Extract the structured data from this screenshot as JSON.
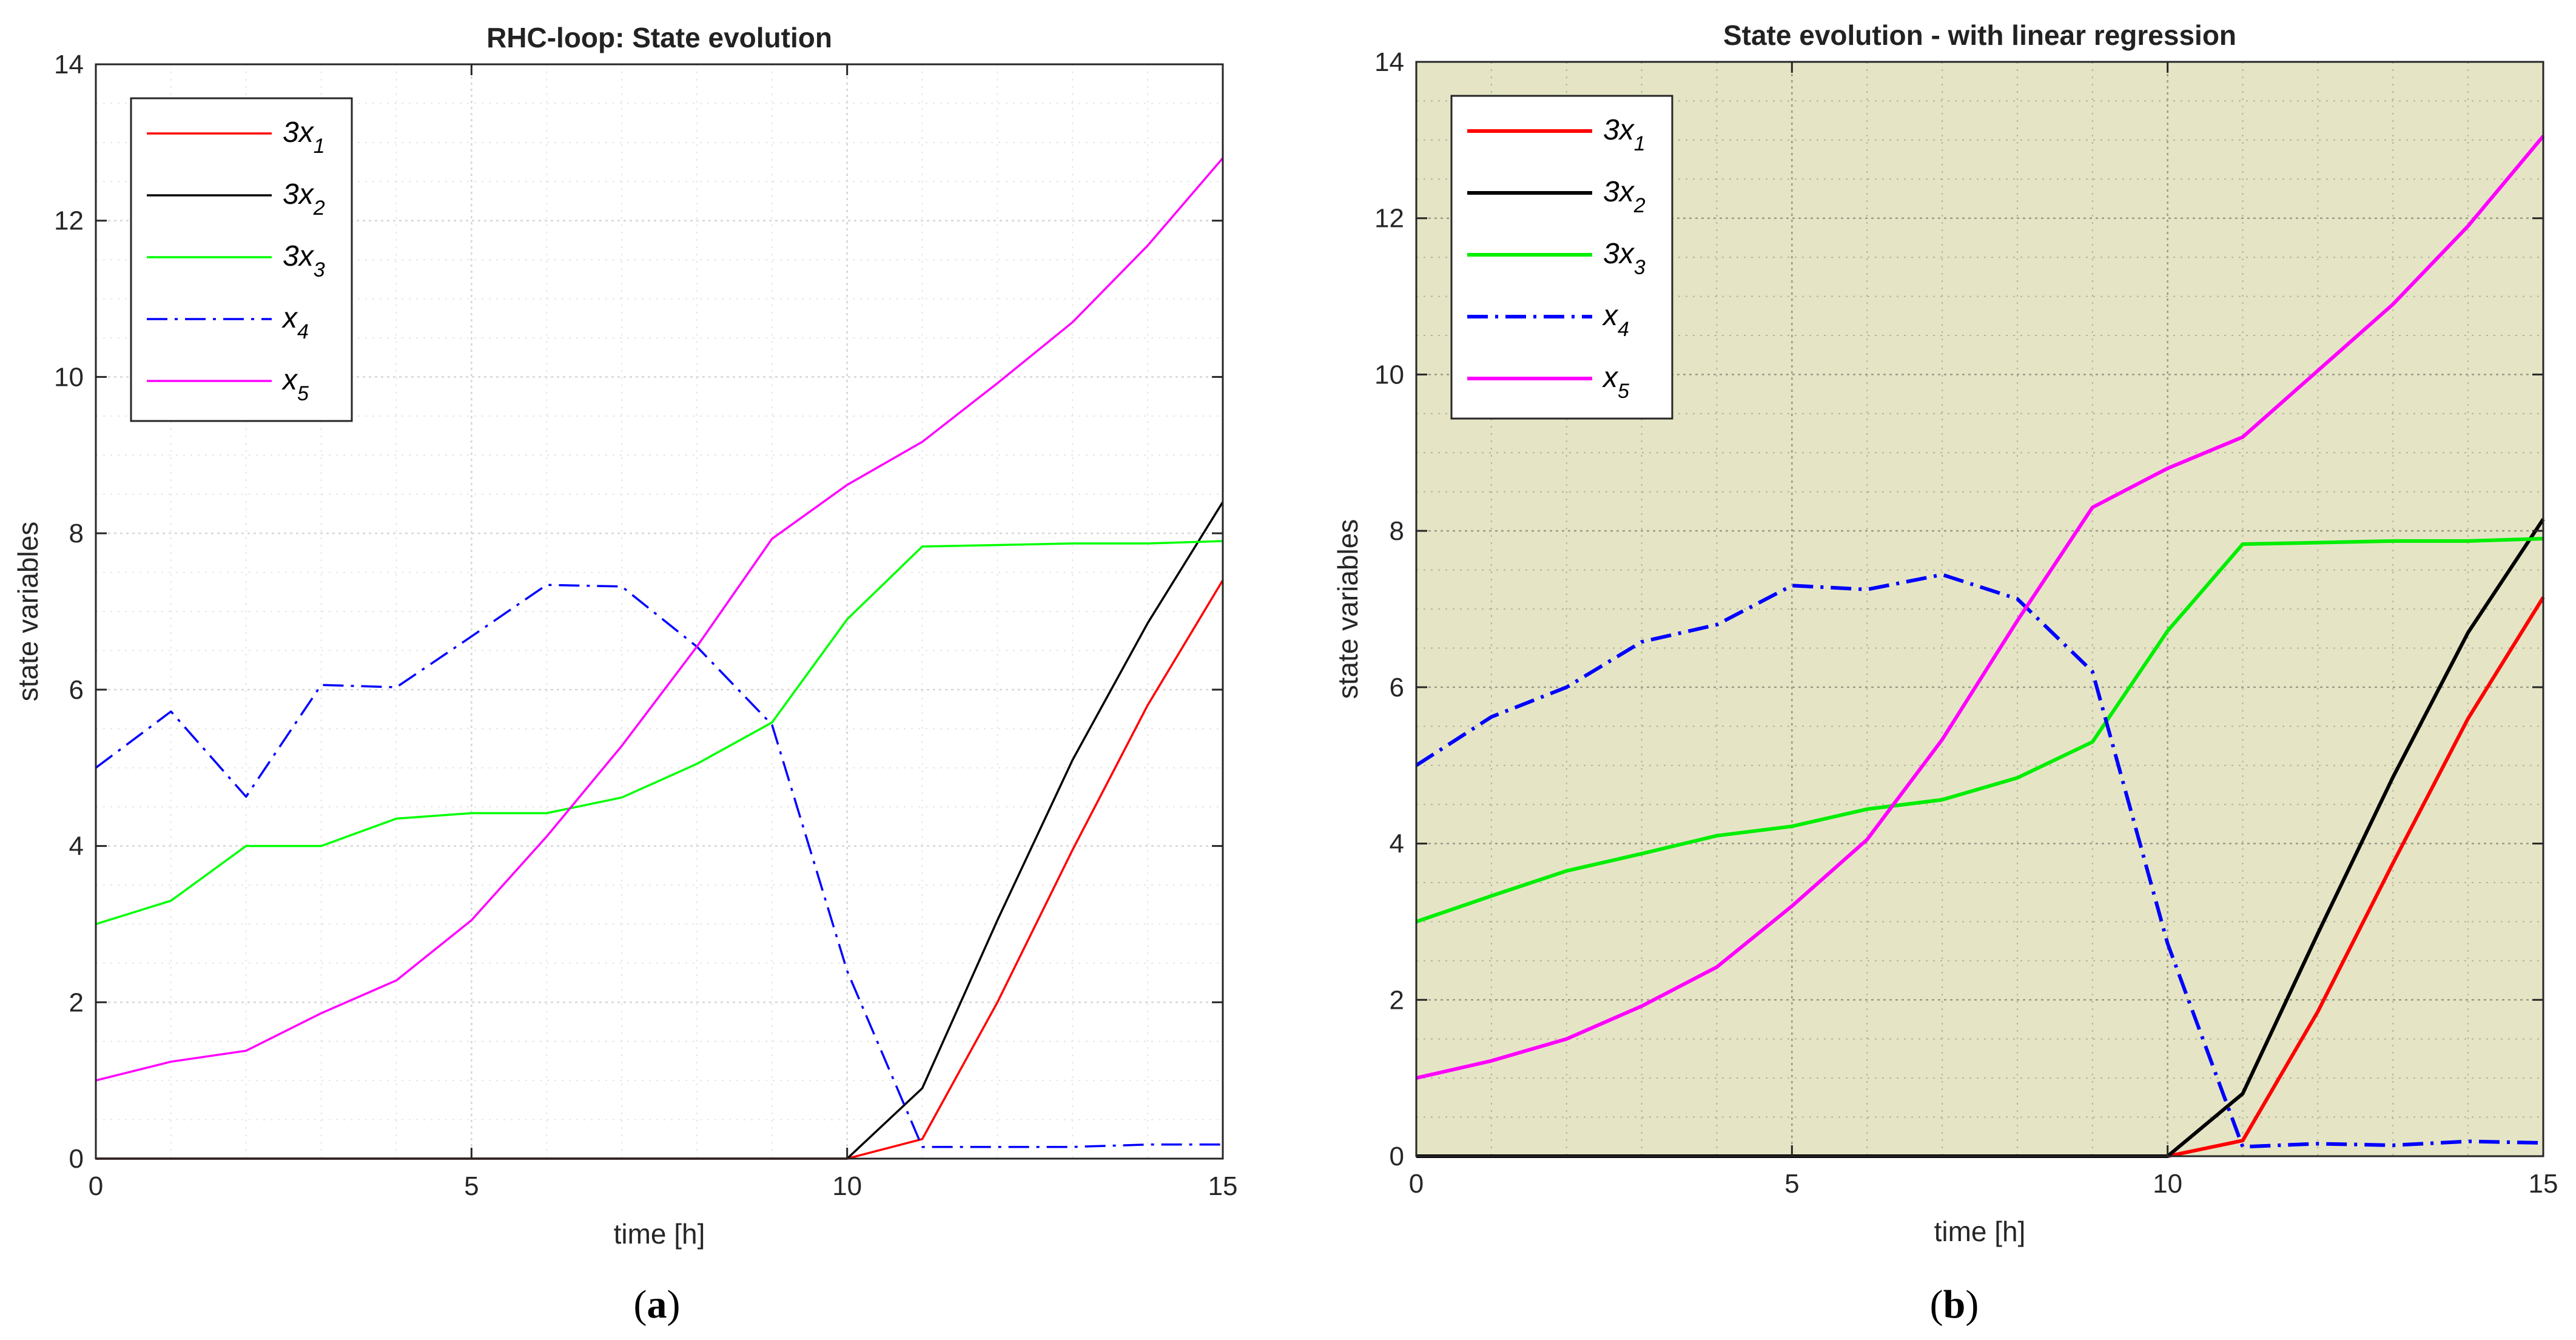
{
  "chart_data": [
    {
      "type": "line",
      "title": "RHC-loop: State evolution",
      "xlabel": "time [h]",
      "ylabel": "state variables",
      "xlim": [
        0,
        15
      ],
      "ylim": [
        0,
        14
      ],
      "xticks": [
        0,
        5,
        10,
        15
      ],
      "yticks": [
        0,
        2,
        4,
        6,
        8,
        10,
        12,
        14
      ],
      "grid": "dotted",
      "background": "#ffffff",
      "caption": {
        "open": "(",
        "letter": "a",
        "close": ")"
      },
      "legend_position": "top-left",
      "x": [
        0,
        1,
        2,
        3,
        4,
        5,
        6,
        7,
        8,
        9,
        10,
        11,
        12,
        13,
        14,
        15
      ],
      "series": [
        {
          "name": "3x1",
          "label_main": "3x",
          "label_sub": "1",
          "color": "#ff0000",
          "dash": "solid",
          "values": [
            0,
            0,
            0,
            0,
            0,
            0,
            0,
            0,
            0,
            0,
            0,
            0.25,
            2.0,
            3.95,
            5.8,
            7.4
          ]
        },
        {
          "name": "3x2",
          "label_main": "3x",
          "label_sub": "2",
          "color": "#000000",
          "dash": "solid",
          "values": [
            0,
            0,
            0,
            0,
            0,
            0,
            0,
            0,
            0,
            0,
            0,
            0.9,
            3.05,
            5.1,
            6.85,
            8.4
          ]
        },
        {
          "name": "3x3",
          "label_main": "3x",
          "label_sub": "3",
          "color": "#00ff00",
          "dash": "solid",
          "values": [
            3.0,
            3.3,
            4.0,
            4.0,
            4.35,
            4.42,
            4.42,
            4.62,
            5.05,
            5.58,
            6.9,
            7.83,
            7.85,
            7.87,
            7.87,
            7.9
          ]
        },
        {
          "name": "x4",
          "label_main": "x",
          "label_sub": "4",
          "color": "#0000ff",
          "dash": "dashdot",
          "values": [
            5.0,
            5.72,
            4.63,
            6.06,
            6.03,
            6.68,
            7.34,
            7.32,
            6.55,
            5.55,
            2.4,
            0.15,
            0.15,
            0.15,
            0.18,
            0.18
          ]
        },
        {
          "name": "x5",
          "label_main": "x",
          "label_sub": "5",
          "color": "#ff00ff",
          "dash": "solid",
          "values": [
            1.0,
            1.24,
            1.38,
            1.86,
            2.28,
            3.05,
            4.12,
            5.28,
            6.55,
            7.93,
            8.62,
            9.17,
            9.92,
            10.7,
            11.68,
            12.8
          ]
        }
      ]
    },
    {
      "type": "line",
      "title": "State evolution - with linear regression",
      "xlabel": "time [h]",
      "ylabel": "state variables",
      "xlim": [
        0,
        15
      ],
      "ylim": [
        0,
        14
      ],
      "xticks": [
        0,
        5,
        10,
        15
      ],
      "yticks": [
        0,
        2,
        4,
        6,
        8,
        10,
        12,
        14
      ],
      "grid": "dotted",
      "background": "#e5e5c6",
      "caption": {
        "open": "(",
        "letter": "b",
        "close": ")"
      },
      "legend_position": "top-left",
      "x": [
        0,
        1,
        2,
        3,
        4,
        5,
        6,
        7,
        8,
        9,
        10,
        11,
        12,
        13,
        14,
        15
      ],
      "series": [
        {
          "name": "3x1",
          "label_main": "3x",
          "label_sub": "1",
          "color": "#ff0000",
          "dash": "solid",
          "values": [
            0,
            0,
            0,
            0,
            0,
            0,
            0,
            0,
            0,
            0,
            0,
            0.2,
            1.85,
            3.75,
            5.6,
            7.15
          ]
        },
        {
          "name": "3x2",
          "label_main": "3x",
          "label_sub": "2",
          "color": "#000000",
          "dash": "solid",
          "values": [
            0,
            0,
            0,
            0,
            0,
            0,
            0,
            0,
            0,
            0,
            0,
            0.8,
            2.85,
            4.85,
            6.7,
            8.15
          ]
        },
        {
          "name": "3x3",
          "label_main": "3x",
          "label_sub": "3",
          "color": "#00ee00",
          "dash": "solid",
          "values": [
            3.0,
            3.33,
            3.65,
            3.87,
            4.1,
            4.22,
            4.44,
            4.56,
            4.84,
            5.3,
            6.72,
            7.83,
            7.85,
            7.87,
            7.87,
            7.9
          ]
        },
        {
          "name": "x4",
          "label_main": "x",
          "label_sub": "4",
          "color": "#0000ff",
          "dash": "dashdot",
          "values": [
            5.0,
            5.62,
            6.0,
            6.58,
            6.8,
            7.3,
            7.25,
            7.44,
            7.13,
            6.2,
            2.72,
            0.12,
            0.16,
            0.14,
            0.19,
            0.17
          ]
        },
        {
          "name": "x5",
          "label_main": "x",
          "label_sub": "5",
          "color": "#ff00ff",
          "dash": "solid",
          "values": [
            1.0,
            1.22,
            1.5,
            1.92,
            2.42,
            3.2,
            4.05,
            5.33,
            6.85,
            8.3,
            8.8,
            9.2,
            10.05,
            10.9,
            11.9,
            13.05
          ]
        }
      ]
    }
  ]
}
